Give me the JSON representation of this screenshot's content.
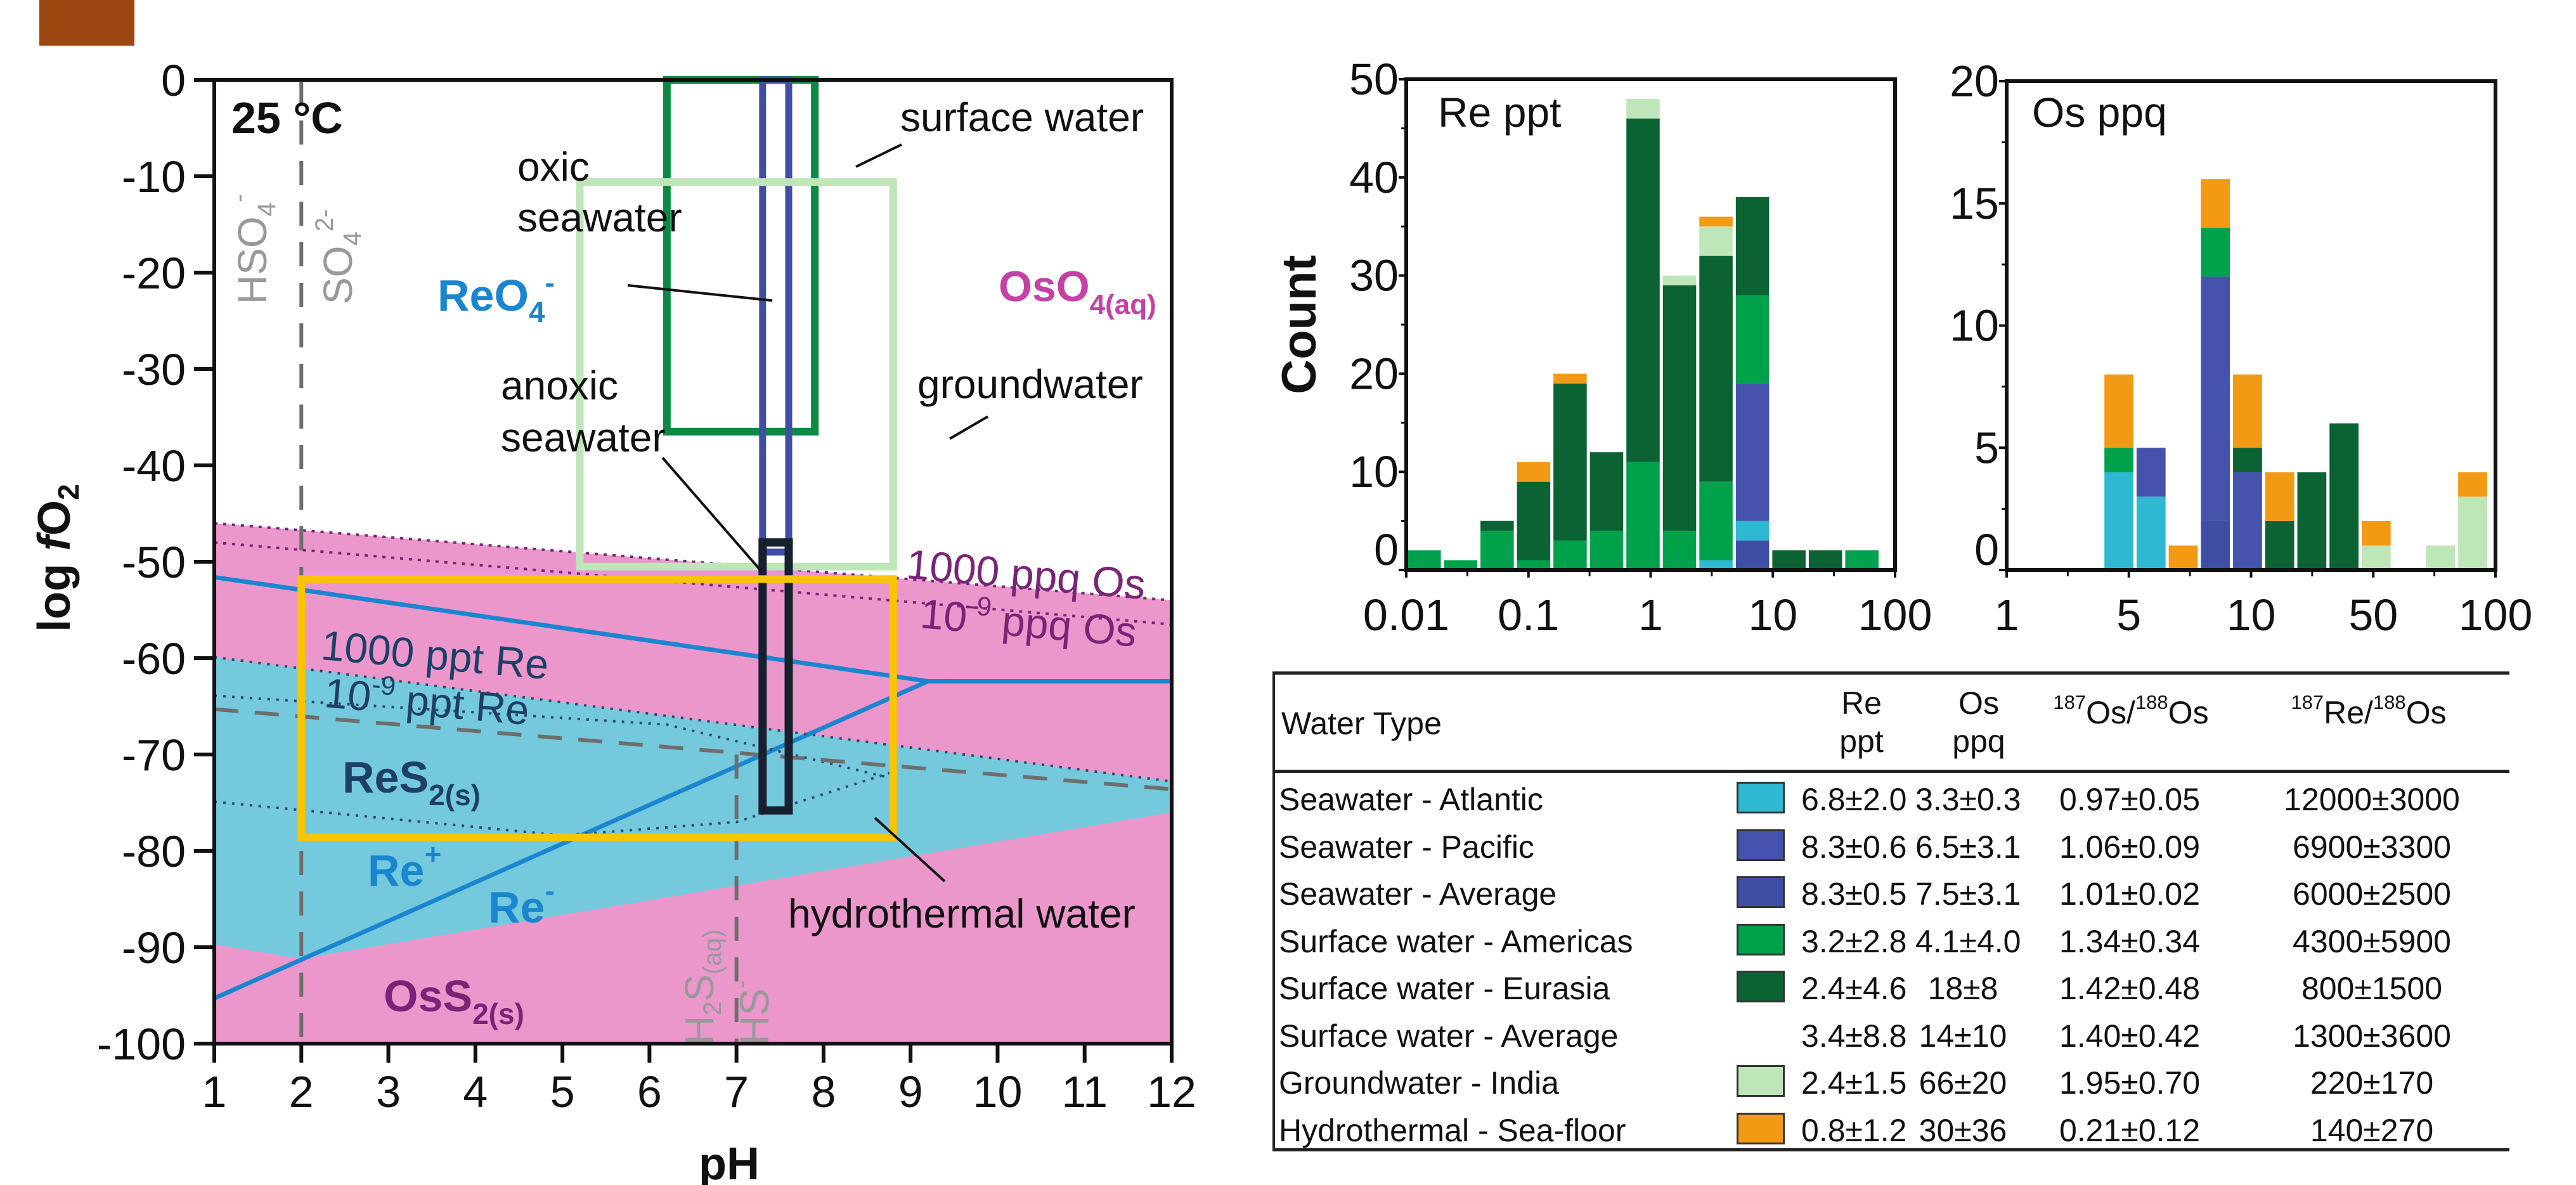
{
  "colors": {
    "atlantic": "#2fb8d2",
    "pacific": "#4553ad",
    "average": "#3f4ea5",
    "americas": "#00a14b",
    "eurasia": "#0b6232",
    "groundwater": "#bfe6b8",
    "hydrothermal": "#f39a15",
    "os_field": "#eb97cc",
    "re_field": "#75c9dc",
    "re_line": "#1b86cf",
    "brand": "#9c4712"
  },
  "chart_data": [
    {
      "type": "area",
      "name": "pourbaix-diagram",
      "title": "25 °C",
      "xlabel": "pH",
      "ylabel": "log fO2",
      "xlim": [
        1,
        12
      ],
      "ylim": [
        -100,
        0
      ],
      "xticks": [
        "1",
        "2",
        "3",
        "4",
        "5",
        "6",
        "7",
        "8",
        "9",
        "10",
        "11",
        "12"
      ],
      "yticks": [
        "0",
        "-10",
        "-20",
        "-30",
        "-40",
        "-50",
        "-60",
        "-70",
        "-80",
        "-90",
        "-100"
      ],
      "fields": [
        {
          "label": "OsO4(aq)",
          "main": "OsO",
          "sub": "4(aq)",
          "color": "#c441a6"
        },
        {
          "label": "ReO4-",
          "main": "ReO",
          "sub": "4",
          "sup": "-",
          "color": "#1b86cf"
        },
        {
          "label": "ReS2(s)",
          "main": "ReS",
          "sub": "2(s)",
          "color": "#1d4066"
        },
        {
          "label": "OsS2(s)",
          "main": "OsS",
          "sub": "2(s)",
          "color": "#7a2478"
        },
        {
          "label": "Re+",
          "main": "Re",
          "sup": "+",
          "color": "#1b86cf"
        },
        {
          "label": "Re-",
          "main": "Re",
          "sup": "-",
          "color": "#1b86cf"
        }
      ],
      "os_stability_region": {
        "top": [
          [
            1,
            -46
          ],
          [
            12,
            -54
          ]
        ],
        "bottom": [
          [
            1,
            -100
          ],
          [
            12,
            -100
          ]
        ]
      },
      "re_stability_region": {
        "top": [
          [
            1,
            -59.9
          ],
          [
            12,
            -72.8
          ]
        ],
        "bottom": [
          [
            1,
            -89.7
          ],
          [
            2,
            -91.2
          ],
          [
            12,
            -76
          ]
        ]
      },
      "lines": [
        {
          "name": "1000 ppq Os",
          "style": "dotted",
          "points": [
            [
              1,
              -46
            ],
            [
              12,
              -54
            ]
          ]
        },
        {
          "name": "10^-9 ppq Os",
          "style": "dotted",
          "points": [
            [
              1,
              -48
            ],
            [
              12,
              -56.5
            ]
          ]
        },
        {
          "name": "Re upper boundary",
          "style": "solid",
          "points": [
            [
              1,
              -51.6
            ],
            [
              9.2,
              -62.4
            ],
            [
              12,
              -62.4
            ]
          ]
        },
        {
          "name": "Re lower boundary",
          "style": "solid",
          "points": [
            [
              1,
              -95.3
            ],
            [
              9.2,
              -62.4
            ]
          ]
        },
        {
          "name": "1000 ppt Re",
          "style": "dotted",
          "points": [
            [
              1,
              -59.9
            ],
            [
              12,
              -72.8
            ]
          ]
        },
        {
          "name": "10^-9 ppt Re",
          "style": "dotted",
          "points": [
            [
              1,
              -63.9
            ],
            [
              6.2,
              -66.9
            ],
            [
              8.8,
              -72.5
            ]
          ]
        },
        {
          "name": "ReS2 lower 10^-9",
          "style": "dotted",
          "points": [
            [
              1,
              -74.9
            ],
            [
              5,
              -78.4
            ],
            [
              7,
              -77
            ],
            [
              8.8,
              -71.8
            ]
          ]
        },
        {
          "name": "sulfate-sulfide",
          "style": "dashed",
          "points": [
            [
              1,
              -65.3
            ],
            [
              12,
              -73.6
            ]
          ]
        },
        {
          "name": "HSO4-/SO4 2-",
          "style": "dashed-vertical",
          "points": [
            [
              2,
              0
            ],
            [
              2,
              -100
            ]
          ]
        },
        {
          "name": "H2S(aq)/HS-",
          "style": "dashed-vertical",
          "points": [
            [
              7,
              -70
            ],
            [
              7,
              -100
            ]
          ]
        }
      ],
      "boxes": [
        {
          "name": "surface water",
          "ph": [
            6.2,
            7.9
          ],
          "logfo2": [
            0,
            -36.5
          ],
          "color": "#0a8a45"
        },
        {
          "name": "oxic seawater",
          "ph": [
            7.3,
            7.6
          ],
          "logfo2": [
            0,
            -49
          ],
          "color": "#3f4ea5"
        },
        {
          "name": "groundwater",
          "ph": [
            5.2,
            8.8
          ],
          "logfo2": [
            -10.6,
            -50.5
          ],
          "color": "#bfe6b8"
        },
        {
          "name": "anoxic seawater",
          "ph": [
            7.3,
            7.6
          ],
          "logfo2": [
            -48,
            -75.8
          ],
          "color": "#16202e"
        },
        {
          "name": "hydrothermal water",
          "ph": [
            2,
            8.8
          ],
          "logfo2": [
            -51.8,
            -78.6
          ],
          "color": "#f9c400"
        }
      ],
      "annotations": {
        "temp": "25 °C",
        "hso4_main": "HSO",
        "hso4_sub": "4",
        "hso4_sup": "-",
        "so4_main": "SO",
        "so4_sub": "4",
        "so4_sup": "2-",
        "h2s_main": "H",
        "h2s_sub1": "2",
        "h2s_mid": "S",
        "h2s_sub2": "(aq)",
        "hs_main": "HS",
        "hs_sup": "-",
        "oxic_line1": "oxic",
        "oxic_line2": "seawater",
        "anoxic_line1": "anoxic",
        "anoxic_line2": "seawater",
        "surface_water": "surface water",
        "groundwater": "groundwater",
        "hydrothermal_water": "hydrothermal water",
        "ppq_1000": "1000 ppq Os",
        "ppq_1e9_base": "10",
        "ppq_1e9_exp": "-9",
        "ppq_1e9_rest": " ppq Os",
        "ppt_1000": "1000 ppt Re",
        "ppt_1e9_base": "10",
        "ppt_1e9_exp": "-9",
        "ppt_1e9_rest": " ppt Re"
      },
      "ylabel_main": "log ",
      "ylabel_italic": "f",
      "ylabel_o": "O",
      "ylabel_sub": "2"
    },
    {
      "type": "bar",
      "name": "re-histogram",
      "title": "Re ppt",
      "ylabel": "Count",
      "xscale": "log",
      "xlim": [
        0.01,
        100
      ],
      "ylim": [
        0,
        50
      ],
      "xtick_labels": [
        "0.01",
        "0.1",
        "1",
        "10",
        "100"
      ],
      "ytick_labels": [
        "0",
        "10",
        "20",
        "30",
        "40",
        "50"
      ],
      "series_order": [
        "pacific",
        "atlantic",
        "americas",
        "eurasia",
        "groundwater",
        "hydrothermal"
      ],
      "bins": [
        [
          {
            "s": "americas",
            "v": 2
          }
        ],
        [
          {
            "s": "americas",
            "v": 1
          }
        ],
        [
          {
            "s": "americas",
            "v": 4
          },
          {
            "s": "eurasia",
            "v": 1
          }
        ],
        [
          {
            "s": "americas",
            "v": 1
          },
          {
            "s": "eurasia",
            "v": 8
          },
          {
            "s": "hydrothermal",
            "v": 2
          }
        ],
        [
          {
            "s": "americas",
            "v": 3
          },
          {
            "s": "eurasia",
            "v": 16
          },
          {
            "s": "hydrothermal",
            "v": 1
          }
        ],
        [
          {
            "s": "americas",
            "v": 4
          },
          {
            "s": "eurasia",
            "v": 8
          }
        ],
        [
          {
            "s": "americas",
            "v": 11
          },
          {
            "s": "eurasia",
            "v": 35
          },
          {
            "s": "groundwater",
            "v": 2
          }
        ],
        [
          {
            "s": "americas",
            "v": 4
          },
          {
            "s": "eurasia",
            "v": 25
          },
          {
            "s": "groundwater",
            "v": 1
          }
        ],
        [
          {
            "s": "atlantic",
            "v": 1
          },
          {
            "s": "americas",
            "v": 8
          },
          {
            "s": "eurasia",
            "v": 23
          },
          {
            "s": "groundwater",
            "v": 3
          },
          {
            "s": "hydrothermal",
            "v": 1
          }
        ],
        [
          {
            "s": "average",
            "v": 3
          },
          {
            "s": "atlantic",
            "v": 2
          },
          {
            "s": "pacific",
            "v": 14
          },
          {
            "s": "americas",
            "v": 9
          },
          {
            "s": "eurasia",
            "v": 10
          }
        ],
        [
          {
            "s": "eurasia",
            "v": 2
          }
        ],
        [
          {
            "s": "eurasia",
            "v": 2
          }
        ],
        [
          {
            "s": "americas",
            "v": 2
          }
        ]
      ]
    },
    {
      "type": "bar",
      "name": "os-histogram",
      "title": "Os ppq",
      "ylabel": "Count",
      "xtick_labels": [
        "1",
        "5",
        "10",
        "50",
        "100"
      ],
      "ytick_labels": [
        "0",
        "5",
        "10",
        "15",
        "20"
      ],
      "ylim": [
        0,
        20
      ],
      "bins": [
        [],
        [],
        [],
        [
          {
            "s": "atlantic",
            "v": 4
          },
          {
            "s": "americas",
            "v": 1
          },
          {
            "s": "hydrothermal",
            "v": 3
          }
        ],
        [
          {
            "s": "atlantic",
            "v": 3
          },
          {
            "s": "pacific",
            "v": 2
          }
        ],
        [
          {
            "s": "hydrothermal",
            "v": 1
          }
        ],
        [
          {
            "s": "average",
            "v": 2
          },
          {
            "s": "pacific",
            "v": 10
          },
          {
            "s": "americas",
            "v": 2
          },
          {
            "s": "hydrothermal",
            "v": 2
          }
        ],
        [
          {
            "s": "pacific",
            "v": 4
          },
          {
            "s": "eurasia",
            "v": 1
          },
          {
            "s": "hydrothermal",
            "v": 3
          }
        ],
        [
          {
            "s": "eurasia",
            "v": 2
          },
          {
            "s": "hydrothermal",
            "v": 2
          }
        ],
        [
          {
            "s": "eurasia",
            "v": 4
          }
        ],
        [
          {
            "s": "eurasia",
            "v": 6
          }
        ],
        [
          {
            "s": "groundwater",
            "v": 1
          },
          {
            "s": "hydrothermal",
            "v": 1
          }
        ],
        [],
        [
          {
            "s": "groundwater",
            "v": 1
          }
        ],
        [
          {
            "s": "groundwater",
            "v": 3
          },
          {
            "s": "hydrothermal",
            "v": 1
          }
        ]
      ]
    },
    {
      "type": "table",
      "name": "water-type-table",
      "headers": {
        "water_type": "Water Type",
        "re_line1": "Re",
        "re_line2": "ppt",
        "os_line1": "Os",
        "os_line2": "ppq",
        "osos_sup1": "187",
        "osos_mid": "Os/",
        "osos_sup2": "188",
        "osos_end": "Os",
        "reos_sup1": "187",
        "reos_mid": "Re/",
        "reos_sup2": "188",
        "reos_end": "Os"
      },
      "rows": [
        {
          "water_type": "Seawater - Atlantic",
          "swatch": "atlantic",
          "re": "6.8±2.0",
          "os": "3.3±0.3",
          "os_ratio": "0.97±0.05",
          "re_os_ratio": "12000±3000"
        },
        {
          "water_type": "Seawater - Pacific",
          "swatch": "pacific",
          "re": "8.3±0.6",
          "os": "6.5±3.1",
          "os_ratio": "1.06±0.09",
          "re_os_ratio": "6900±3300"
        },
        {
          "water_type": "Seawater - Average",
          "swatch": "average",
          "re": "8.3±0.5",
          "os": "7.5±3.1",
          "os_ratio": "1.01±0.02",
          "re_os_ratio": "6000±2500"
        },
        {
          "water_type": "Surface water -  Americas",
          "swatch": "americas",
          "re": "3.2±2.8",
          "os": "4.1±4.0",
          "os_ratio": "1.34±0.34",
          "re_os_ratio": "4300±5900"
        },
        {
          "water_type": "Surface water - Eurasia",
          "swatch": "eurasia",
          "re": "2.4±4.6",
          "os": "18±8",
          "os_ratio": "1.42±0.48",
          "re_os_ratio": "800±1500"
        },
        {
          "water_type": "Surface water - Average",
          "swatch": "",
          "re": "3.4±8.8",
          "os": "14±10",
          "os_ratio": "1.40±0.42",
          "re_os_ratio": "1300±3600"
        },
        {
          "water_type": "Groundwater - India",
          "swatch": "groundwater",
          "re": "2.4±1.5",
          "os": "66±20",
          "os_ratio": "1.95±0.70",
          "re_os_ratio": "220±170"
        },
        {
          "water_type": "Hydrothermal - Sea-floor",
          "swatch": "hydrothermal",
          "re": "0.8±1.2",
          "os": "30±36",
          "os_ratio": "0.21±0.12",
          "re_os_ratio": "140±270"
        }
      ]
    }
  ]
}
